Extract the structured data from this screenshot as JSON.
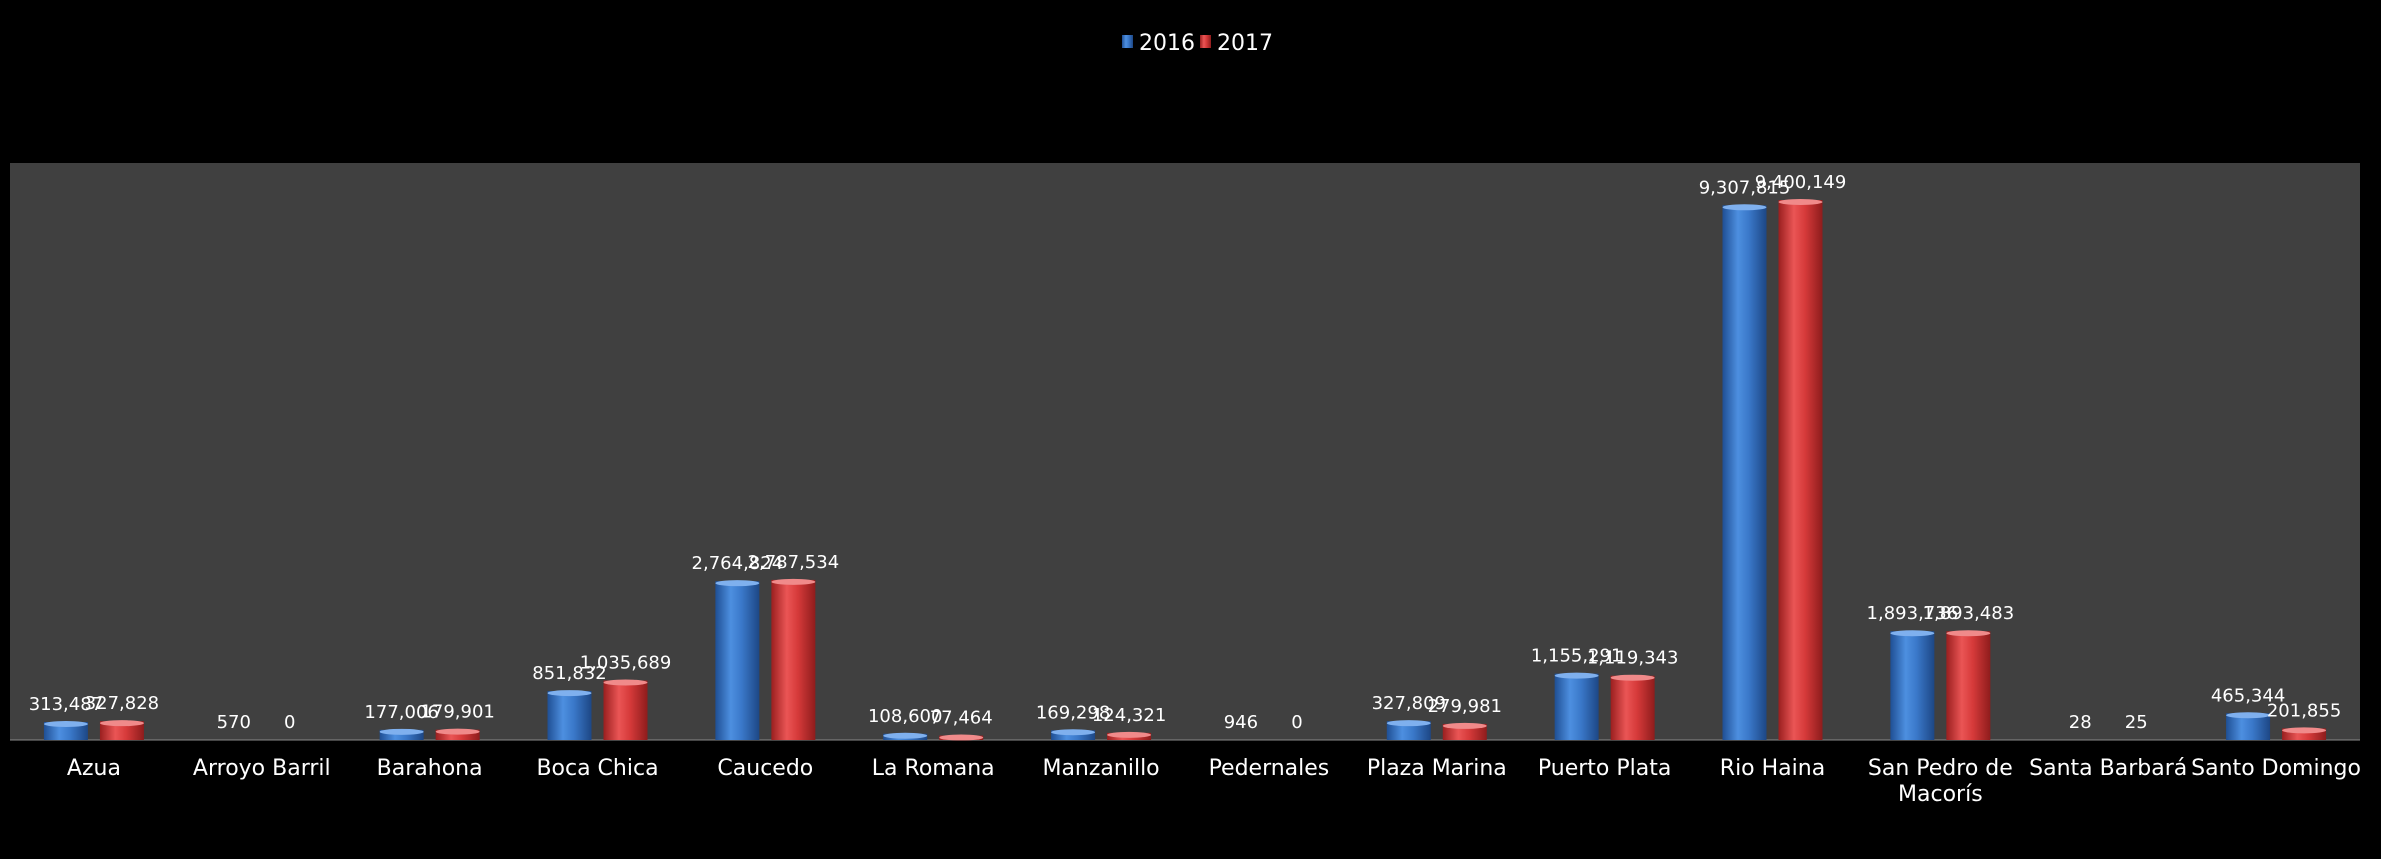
{
  "chart_data": {
    "type": "bar",
    "title": "",
    "xlabel": "",
    "ylabel": "",
    "ylim": [
      0,
      10000000
    ],
    "legend_position": "top-center",
    "grid": false,
    "categories": [
      [
        "Azua"
      ],
      [
        "Arroyo Barril"
      ],
      [
        "Barahona"
      ],
      [
        "Boca Chica"
      ],
      [
        "Caucedo"
      ],
      [
        "La Romana"
      ],
      [
        "Manzanillo"
      ],
      [
        "Pedernales"
      ],
      [
        "Plaza Marina"
      ],
      [
        "Puerto Plata"
      ],
      [
        "Rio Haina"
      ],
      [
        "San Pedro de",
        "Macorís"
      ],
      [
        "Santa Barbará"
      ],
      [
        "Santo Domingo"
      ]
    ],
    "series": [
      {
        "name": "2016",
        "color": "#3a78c9",
        "values": [
          313487,
          570,
          177006,
          851832,
          2764824,
          108600,
          169298,
          946,
          327809,
          1155291,
          9307815,
          1893736,
          28,
          465344
        ],
        "labels": [
          "313,487",
          "570",
          "177,006",
          "851,832",
          "2,764,824",
          "108,600",
          "169,298",
          "946",
          "327,809",
          "1,155,291",
          "9,307,815",
          "1,893,736",
          "28",
          "465,344"
        ]
      },
      {
        "name": "2017",
        "color": "#d63a3a",
        "values": [
          327828,
          0,
          179901,
          1035689,
          2787534,
          77464,
          124321,
          0,
          279981,
          1119343,
          9400149,
          1893483,
          25,
          201855
        ],
        "labels": [
          "327,828",
          "0",
          "179,901",
          "1,035,689",
          "2,787,534",
          "77,464",
          "124,321",
          "0",
          "279,981",
          "1,119,343",
          "9,400,149",
          "1,893,483",
          "25",
          "201,855"
        ]
      }
    ],
    "colors": {
      "outer_background": "#000000",
      "plot_background": "#404040",
      "text": "#ffffff"
    }
  }
}
